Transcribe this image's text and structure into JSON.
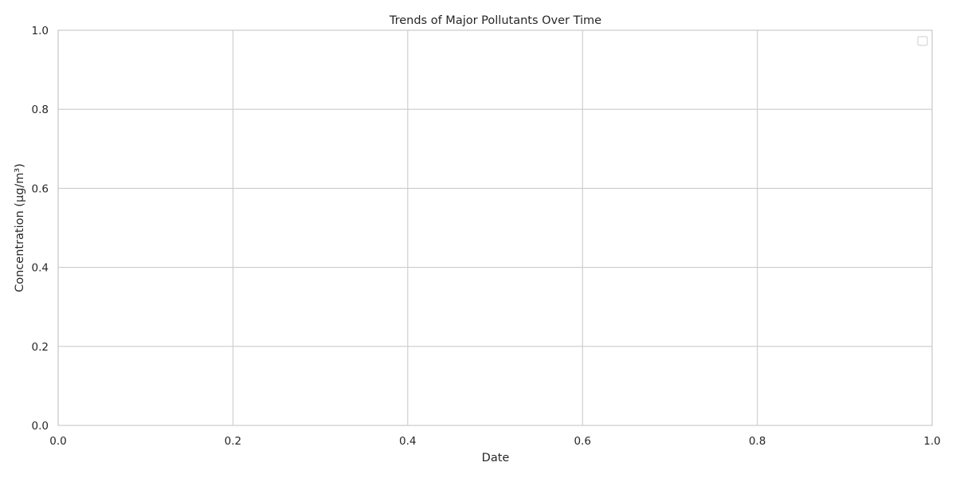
{
  "chart_data": {
    "type": "line",
    "title": "Trends of Major Pollutants Over Time",
    "xlabel": "Date",
    "ylabel": "Concentration (µg/m³)",
    "xlim": [
      0,
      1
    ],
    "ylim": [
      0,
      1
    ],
    "x_ticks": [
      "0.0",
      "0.2",
      "0.4",
      "0.6",
      "0.8",
      "1.0"
    ],
    "y_ticks": [
      "0.0",
      "0.2",
      "0.4",
      "0.6",
      "0.8",
      "1.0"
    ],
    "x_tick_values": [
      0,
      0.2,
      0.4,
      0.6,
      0.8,
      1.0
    ],
    "y_tick_values": [
      0,
      0.2,
      0.4,
      0.6,
      0.8,
      1.0
    ],
    "grid": true,
    "legend": "upper-right",
    "legend_entries": [],
    "series": [],
    "colors": {
      "grid": "#cccccc",
      "spine": "#cccccc",
      "text": "#262626",
      "background": "#ffffff"
    }
  }
}
